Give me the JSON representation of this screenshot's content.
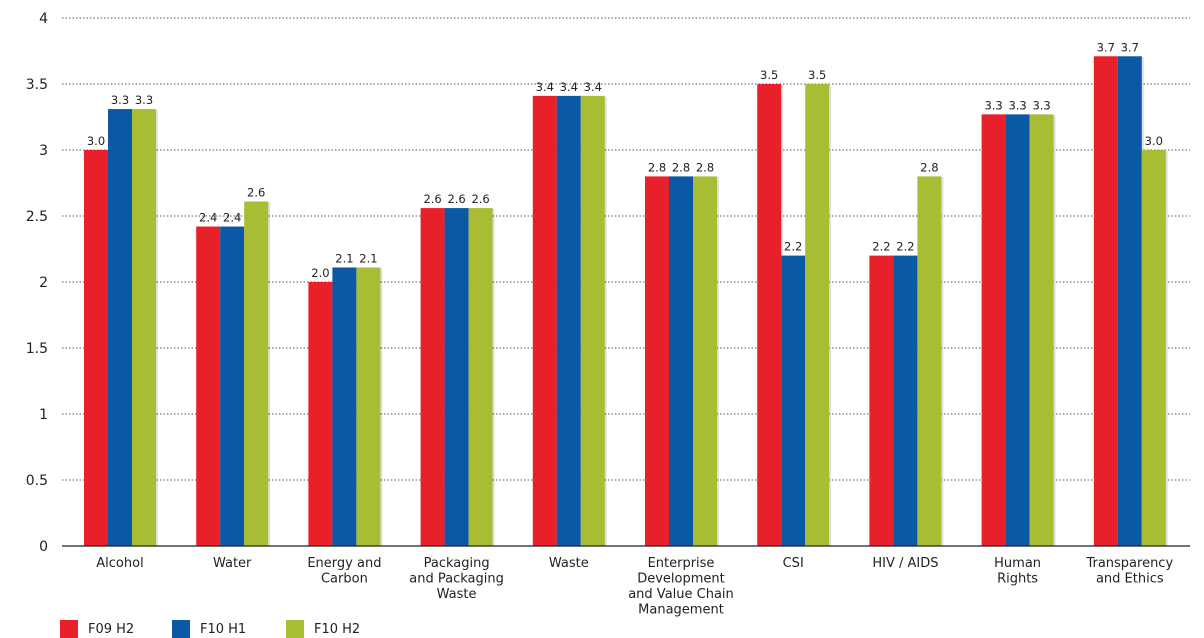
{
  "chart_data": {
    "type": "bar",
    "title": "",
    "xlabel": "",
    "ylabel": "",
    "ylim": [
      0,
      4
    ],
    "yticks": [
      0,
      0.5,
      1,
      1.5,
      2,
      2.5,
      3,
      3.5,
      4
    ],
    "ytick_labels": [
      "0",
      "0.5",
      "1",
      "1.5",
      "2",
      "2.5",
      "3",
      "3.5",
      "4"
    ],
    "grid": "dotted-horizontal",
    "legend_position": "bottom-left",
    "categories": [
      [
        "Alcohol"
      ],
      [
        "Water"
      ],
      [
        "Energy and",
        "Carbon"
      ],
      [
        "Packaging",
        "and Packaging",
        "Waste"
      ],
      [
        "Waste"
      ],
      [
        "Enterprise",
        "Development",
        "and Value Chain",
        "Management"
      ],
      [
        "CSI"
      ],
      [
        "HIV / AIDS"
      ],
      [
        "Human",
        "Rights"
      ],
      [
        "Transparency",
        "and Ethics"
      ]
    ],
    "series": [
      {
        "name": "F09 H2",
        "color": "#e8202a",
        "values": [
          3.0,
          2.42,
          2.0,
          2.56,
          3.41,
          2.8,
          3.5,
          2.2,
          3.27,
          3.71
        ],
        "labels": [
          "3.0",
          "2.4",
          "2.0",
          "2.6",
          "3.4",
          "2.8",
          "3.5",
          "2.2",
          "3.3",
          "3.7"
        ]
      },
      {
        "name": "F10 H1",
        "color": "#0a58a6",
        "values": [
          3.31,
          2.42,
          2.11,
          2.56,
          3.41,
          2.8,
          2.2,
          2.2,
          3.27,
          3.71
        ],
        "labels": [
          "3.3",
          "2.4",
          "2.1",
          "2.6",
          "3.4",
          "2.8",
          "2.2",
          "2.2",
          "3.3",
          "3.7"
        ]
      },
      {
        "name": "F10 H2",
        "color": "#a9bd34",
        "values": [
          3.31,
          2.61,
          2.11,
          2.56,
          3.41,
          2.8,
          3.5,
          2.8,
          3.27,
          3.0
        ],
        "labels": [
          "3.3",
          "2.6",
          "2.1",
          "2.6",
          "3.4",
          "2.8",
          "3.5",
          "2.8",
          "3.3",
          "3.0"
        ]
      }
    ]
  }
}
